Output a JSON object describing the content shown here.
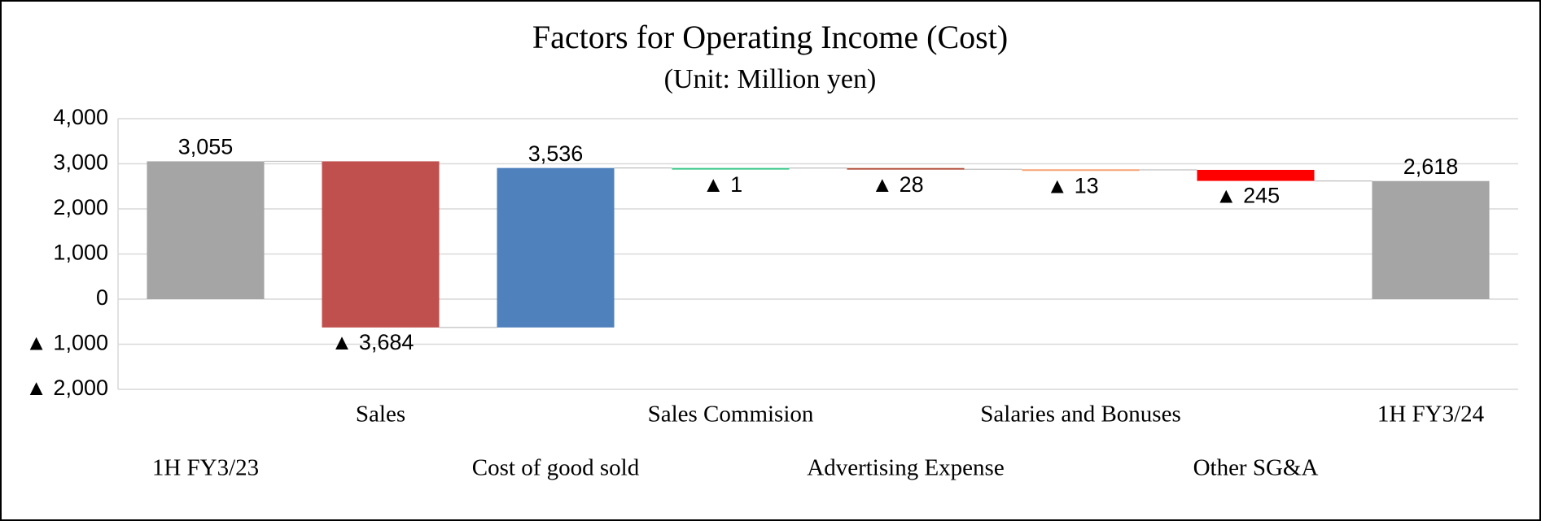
{
  "chart_data": {
    "type": "waterfall",
    "title": "Factors for Operating Income (Cost)",
    "subtitle": "(Unit: Million yen)",
    "categories": [
      "1H FY3/23",
      "Sales",
      "Cost of good sold",
      "Sales Commision",
      "Advertising Expense",
      "Salaries and Bonuses",
      "Other SG&A",
      "1H FY3/24"
    ],
    "values": [
      3055,
      -3684,
      3536,
      -1,
      -28,
      -13,
      -245,
      2618
    ],
    "value_labels": [
      "3,055",
      "▲ 3,684",
      "3,536",
      "▲ 1",
      "▲ 28",
      "▲ 13",
      "▲ 245",
      "2,618"
    ],
    "measure": [
      "total",
      "relative",
      "relative",
      "relative",
      "relative",
      "relative",
      "relative",
      "total"
    ],
    "colors": [
      "#a5a5a5",
      "#c0504d",
      "#4f81bd",
      "#3cc88c",
      "#b5513f",
      "#f4a071",
      "#ff0000",
      "#a5a5a5"
    ],
    "ylim": [
      -2000,
      4000
    ],
    "yticks": [
      {
        "value": -2000,
        "label": "▲ 2,000"
      },
      {
        "value": -1000,
        "label": "▲ 1,000"
      },
      0,
      {
        "value": 1000,
        "label": "1,000"
      },
      {
        "value": 2000,
        "label": "2,000"
      },
      {
        "value": 3000,
        "label": "3,000"
      },
      {
        "value": 4000,
        "label": "4,000"
      }
    ],
    "grid": true
  }
}
